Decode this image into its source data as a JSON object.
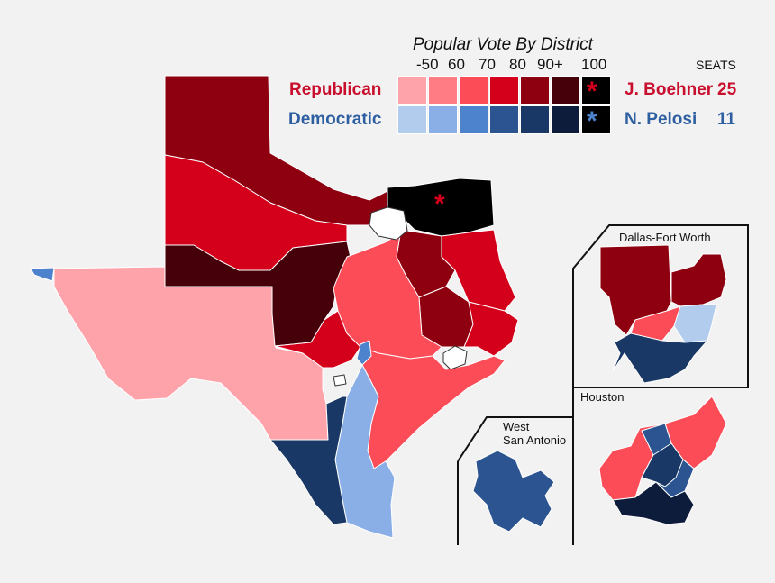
{
  "legend": {
    "title": "Popular Vote By District",
    "ticks": [
      "-50",
      "60",
      "70",
      "80",
      "90+",
      "100"
    ],
    "seats_label": "SEATS",
    "republican": {
      "label": "Republican",
      "colors": [
        "#ffa3ab",
        "#ff7c85",
        "#fb4c58",
        "#d4001b",
        "#8e0010",
        "#450009",
        "#000000"
      ],
      "leader": "J. Boehner",
      "seats": "25"
    },
    "democratic": {
      "label": "Democratic",
      "colors": [
        "#b2ccee",
        "#8aaee6",
        "#4d82cc",
        "#2b5491",
        "#193865",
        "#0c1c3a",
        "#000000"
      ],
      "leader": "N. Pelosi",
      "seats": "11"
    },
    "star_glyph": "*"
  },
  "insets": {
    "dfw": "Dallas-Fort Worth",
    "houston": "Houston",
    "san_antonio_line1": "West",
    "san_antonio_line2": "San Antonio"
  }
}
